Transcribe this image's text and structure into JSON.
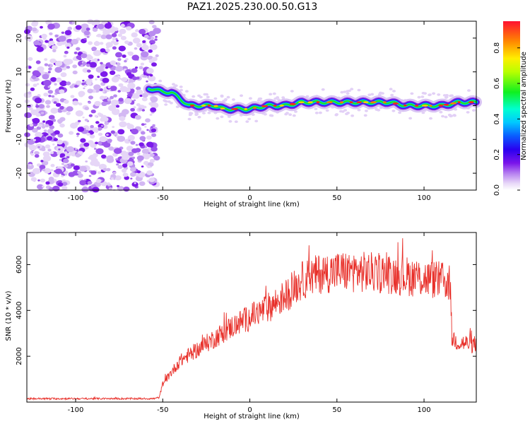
{
  "title": "PAZ1.2025.230.00.50.G13",
  "chart_data": [
    {
      "type": "heatmap",
      "xlabel": "Height of straight line (km)",
      "ylabel": "Frequency (Hz)",
      "xlim": [
        -128,
        130
      ],
      "ylim": [
        -25,
        25
      ],
      "xticks": [
        -100,
        -50,
        0,
        50,
        100
      ],
      "yticks": [
        -20,
        -10,
        0,
        10,
        20
      ],
      "noise_region": [
        -128,
        -53
      ],
      "signal_track": [
        [
          -58,
          5
        ],
        [
          -55,
          5
        ],
        [
          -50,
          4
        ],
        [
          -45,
          4
        ],
        [
          -40,
          2
        ],
        [
          -35,
          0
        ],
        [
          -30,
          0
        ],
        [
          -20,
          0
        ],
        [
          -15,
          -1
        ],
        [
          -10,
          -1
        ],
        [
          0,
          -1
        ],
        [
          10,
          0
        ],
        [
          20,
          0
        ],
        [
          30,
          1
        ],
        [
          40,
          1
        ],
        [
          50,
          1
        ],
        [
          60,
          1
        ],
        [
          70,
          1
        ],
        [
          80,
          1
        ],
        [
          90,
          0
        ],
        [
          100,
          0
        ],
        [
          110,
          0
        ],
        [
          120,
          1
        ],
        [
          130,
          1
        ]
      ],
      "colorbar": {
        "label": "Normalized spectral amplitude",
        "range": [
          0,
          0.95
        ],
        "ticks": [
          0.0,
          0.2,
          0.4,
          0.6,
          0.8
        ]
      },
      "grid": false
    },
    {
      "type": "line",
      "xlabel": "Height of straight line (km)",
      "ylabel": "SNR (10 * v/v)",
      "xlim": [
        -128,
        130
      ],
      "ylim": [
        0,
        7400
      ],
      "xticks": [
        -100,
        -50,
        0,
        50,
        100
      ],
      "yticks": [
        2000,
        4000,
        6000
      ],
      "series_color": "#e8302a",
      "envelope": {
        "x": [
          -128,
          -55,
          -52,
          -50,
          -45,
          -40,
          -30,
          -20,
          -10,
          0,
          10,
          20,
          30,
          40,
          50,
          60,
          70,
          80,
          90,
          100,
          110,
          115,
          116,
          120,
          130
        ],
        "y": [
          150,
          150,
          200,
          800,
          1300,
          1800,
          2300,
          2800,
          3300,
          3700,
          4100,
          4600,
          5300,
          5600,
          5700,
          5700,
          5650,
          5600,
          5500,
          5400,
          5300,
          5200,
          2800,
          2600,
          2500
        ]
      },
      "grid": false
    }
  ]
}
